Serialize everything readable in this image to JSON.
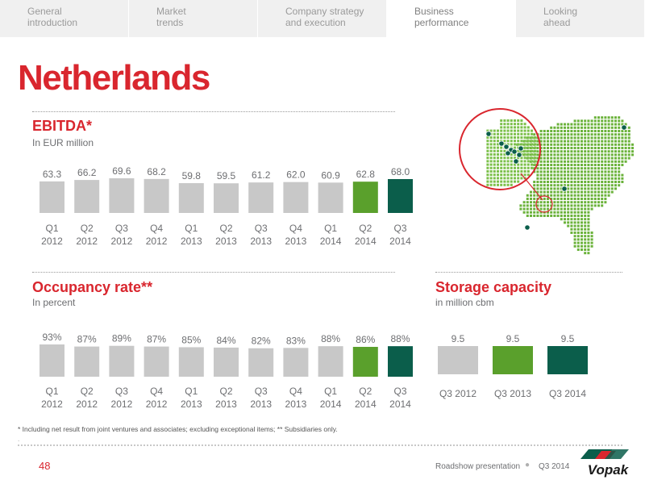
{
  "nav": {
    "tabs": [
      {
        "label": "General\nintroduction",
        "active": false
      },
      {
        "label": "Market\ntrends",
        "active": false
      },
      {
        "label": "Company strategy\nand execution",
        "active": false
      },
      {
        "label": "Business\nperformance",
        "active": true
      },
      {
        "label": "Looking\nahead",
        "active": false
      }
    ]
  },
  "page": {
    "title": "Netherlands",
    "number": "48",
    "footer_left": "Roadshow presentation",
    "footer_right": "Q3 2014",
    "logo_text": "Vopak",
    "footnote": "* Including net result from joint ventures and associates; excluding exceptional items; ** Subsidiaries only.",
    "footnote2": "."
  },
  "colors": {
    "accent_red": "#d9262e",
    "bar_grey": "#c8c8c8",
    "bar_green": "#5aa02c",
    "bar_dark_green": "#0b5e4b"
  },
  "map": {
    "icon": "netherlands-map-icon"
  },
  "ebitda": {
    "title": "EBITDA*",
    "subtitle": "In EUR million"
  },
  "occupancy": {
    "title": "Occupancy rate**",
    "subtitle": "In percent"
  },
  "storage": {
    "title": "Storage capacity",
    "subtitle": "in million cbm"
  },
  "chart_data": [
    {
      "id": "ebitda",
      "type": "bar",
      "title": "EBITDA*",
      "subtitle": "In EUR million",
      "categories": [
        [
          "Q1",
          "2012"
        ],
        [
          "Q2",
          "2012"
        ],
        [
          "Q3",
          "2012"
        ],
        [
          "Q4",
          "2012"
        ],
        [
          "Q1",
          "2013"
        ],
        [
          "Q2",
          "2013"
        ],
        [
          "Q3",
          "2013"
        ],
        [
          "Q4",
          "2013"
        ],
        [
          "Q1",
          "2014"
        ],
        [
          "Q2",
          "2014"
        ],
        [
          "Q3",
          "2014"
        ]
      ],
      "values": [
        63.3,
        66.2,
        69.6,
        68.2,
        59.8,
        59.5,
        61.2,
        62.0,
        60.9,
        62.8,
        68.0
      ],
      "labels": [
        "63.3",
        "66.2",
        "69.6",
        "68.2",
        "59.8",
        "59.5",
        "61.2",
        "62.0",
        "60.9",
        "62.8",
        "68.0"
      ],
      "colors": [
        "#c8c8c8",
        "#c8c8c8",
        "#c8c8c8",
        "#c8c8c8",
        "#c8c8c8",
        "#c8c8c8",
        "#c8c8c8",
        "#c8c8c8",
        "#c8c8c8",
        "#5aa02c",
        "#0b5e4b"
      ],
      "ylim": [
        0,
        69.6
      ]
    },
    {
      "id": "occupancy",
      "type": "bar",
      "title": "Occupancy rate**",
      "subtitle": "In percent",
      "categories": [
        [
          "Q1",
          "2012"
        ],
        [
          "Q2",
          "2012"
        ],
        [
          "Q3",
          "2012"
        ],
        [
          "Q4",
          "2012"
        ],
        [
          "Q1",
          "2013"
        ],
        [
          "Q2",
          "2013"
        ],
        [
          "Q3",
          "2013"
        ],
        [
          "Q4",
          "2013"
        ],
        [
          "Q1",
          "2014"
        ],
        [
          "Q2",
          "2014"
        ],
        [
          "Q3",
          "2014"
        ]
      ],
      "values": [
        93,
        87,
        89,
        87,
        85,
        84,
        82,
        83,
        88,
        86,
        88
      ],
      "labels": [
        "93%",
        "87%",
        "89%",
        "87%",
        "85%",
        "84%",
        "82%",
        "83%",
        "88%",
        "86%",
        "88%"
      ],
      "colors": [
        "#c8c8c8",
        "#c8c8c8",
        "#c8c8c8",
        "#c8c8c8",
        "#c8c8c8",
        "#c8c8c8",
        "#c8c8c8",
        "#c8c8c8",
        "#c8c8c8",
        "#5aa02c",
        "#0b5e4b"
      ],
      "ylim": [
        0,
        93
      ]
    },
    {
      "id": "storage",
      "type": "bar",
      "title": "Storage capacity",
      "subtitle": "in million cbm",
      "categories": [
        [
          "Q3 2012"
        ],
        [
          "Q3 2013"
        ],
        [
          "Q3 2014"
        ]
      ],
      "values": [
        9.5,
        9.5,
        9.5
      ],
      "labels": [
        "9.5",
        "9.5",
        "9.5"
      ],
      "colors": [
        "#c8c8c8",
        "#5aa02c",
        "#0b5e4b"
      ],
      "ylim": [
        0,
        9.5
      ]
    }
  ]
}
